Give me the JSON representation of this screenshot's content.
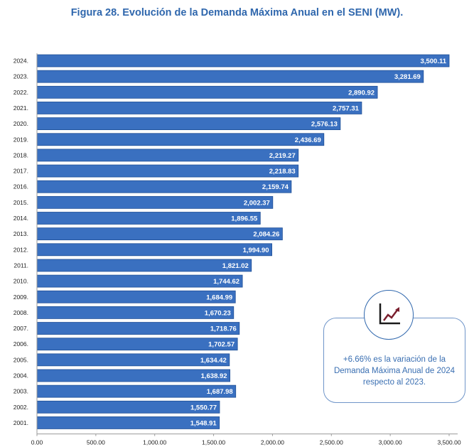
{
  "title": "Figura 28. Evolución de la Demanda Máxima Anual en el SENI (MW).",
  "callout": {
    "text": "+6.66% es la variación de la Demanda Máxima Anual  de 2024 respecto al 2023.",
    "icon": "rising-line-chart-icon"
  },
  "colors": {
    "bar": "#3a70c0",
    "bar_edge": "#1f4f96",
    "title": "#2f67ad",
    "callout": "#3a6fb2"
  },
  "chart_data": {
    "type": "bar",
    "orientation": "horizontal",
    "categories": [
      "2024.",
      "2023.",
      "2022.",
      "2021.",
      "2020.",
      "2019.",
      "2018.",
      "2017.",
      "2016.",
      "2015.",
      "2014.",
      "2013.",
      "2012.",
      "2011.",
      "2010.",
      "2009.",
      "2008.",
      "2007.",
      "2006.",
      "2005.",
      "2004.",
      "2003.",
      "2002.",
      "2001."
    ],
    "values": [
      3500.11,
      3281.69,
      2890.92,
      2757.31,
      2576.13,
      2436.69,
      2219.27,
      2218.83,
      2159.74,
      2002.37,
      1896.55,
      2084.26,
      1994.9,
      1821.02,
      1744.62,
      1684.99,
      1670.23,
      1718.76,
      1702.57,
      1634.42,
      1638.92,
      1687.98,
      1550.77,
      1548.91
    ],
    "value_labels": [
      "3,500.11",
      "3,281.69",
      "2,890.92",
      "2,757.31",
      "2,576.13",
      "2,436.69",
      "2,219.27",
      "2,218.83",
      "2,159.74",
      "2,002.37",
      "1,896.55",
      "2,084.26",
      "1,994.90",
      "1,821.02",
      "1,744.62",
      "1,684.99",
      "1,670.23",
      "1,718.76",
      "1,702.57",
      "1,634.42",
      "1,638.92",
      "1,687.98",
      "1,550.77",
      "1,548.91"
    ],
    "xticks": [
      "0.00",
      "500.00",
      "1,000.00",
      "1,500.00",
      "2,000.00",
      "2,500.00",
      "3,000.00",
      "3,500.00"
    ],
    "xlim": [
      0,
      3500
    ],
    "grid": false
  }
}
